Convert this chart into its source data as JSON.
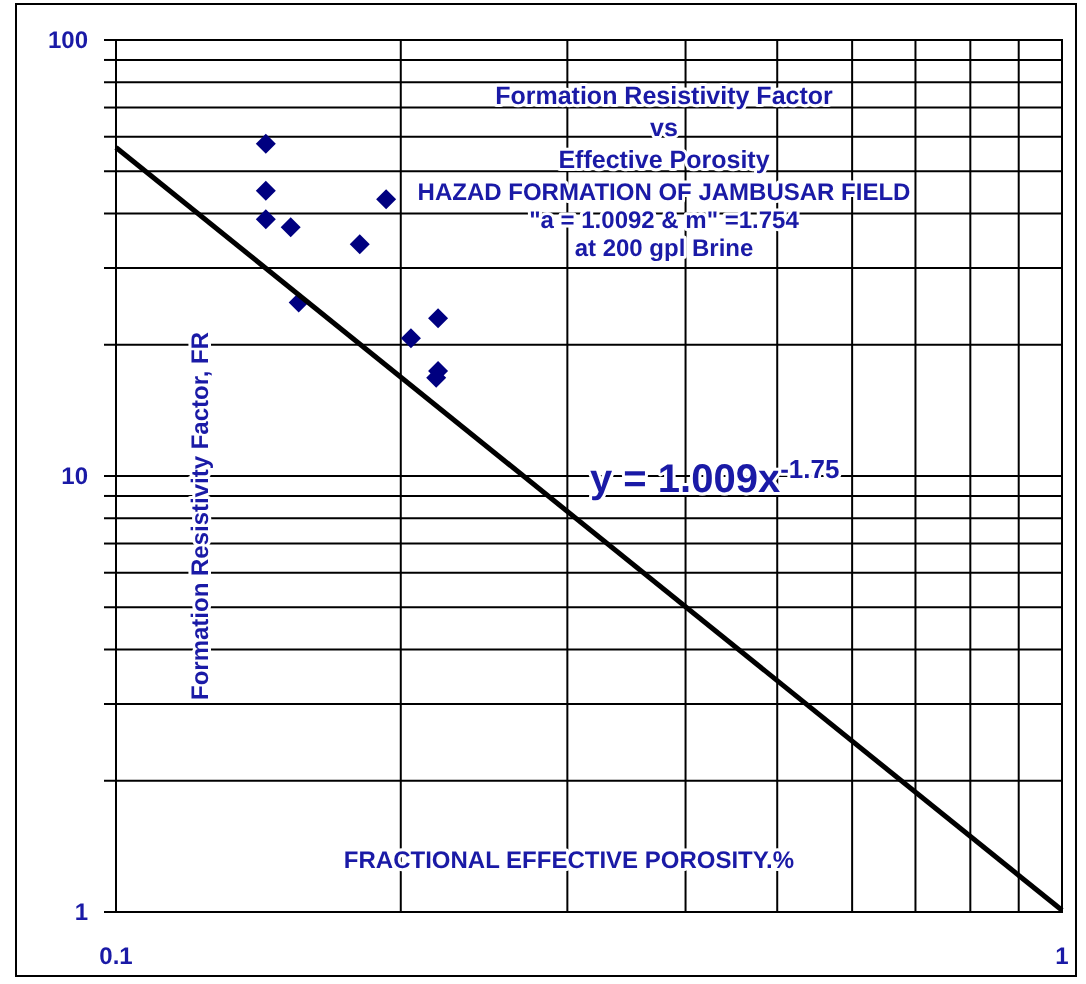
{
  "chart_data": {
    "type": "scatter",
    "title": "Formation Resistivity Factor\nvs\nEffective Porosity",
    "subtitle": "HAZAD FORMATION OF JAMBUSAR FIELD\n\"a = 1.0092 & m\" =1.754\nat 200 gpl Brine",
    "xlabel": "FRACTIONAL EFFECTIVE POROSITY.%",
    "ylabel": "Formation Resistivity Factor, FR",
    "log": "xy",
    "grid": true,
    "marker": "diamond",
    "xlim": [
      0.1,
      1
    ],
    "ylim": [
      1,
      100
    ],
    "xticks": [
      0.1,
      {
        "value": 0.2,
        "label": null
      },
      {
        "value": 0.3,
        "label": null
      },
      {
        "value": 0.4,
        "label": null
      },
      {
        "value": 0.5,
        "label": null
      },
      {
        "value": 0.6,
        "label": null
      },
      {
        "value": 0.7,
        "label": null
      },
      {
        "value": 0.8,
        "label": null
      },
      {
        "value": 0.9,
        "label": null
      },
      1
    ],
    "yticks": [
      1,
      {
        "value": 2,
        "label": null
      },
      {
        "value": 3,
        "label": null
      },
      {
        "value": 4,
        "label": null
      },
      {
        "value": 5,
        "label": null
      },
      {
        "value": 6,
        "label": null
      },
      {
        "value": 7,
        "label": null
      },
      {
        "value": 8,
        "label": null
      },
      {
        "value": 9,
        "label": null
      },
      10,
      {
        "value": 20,
        "label": null
      },
      {
        "value": 30,
        "label": null
      },
      {
        "value": 40,
        "label": null
      },
      {
        "value": 50,
        "label": null
      },
      {
        "value": 60,
        "label": null
      },
      {
        "value": 70,
        "label": null
      },
      {
        "value": 80,
        "label": null
      },
      {
        "value": 90,
        "label": null
      },
      100
    ],
    "series": [
      {
        "type": "scatter",
        "color": "#000080",
        "x": [
          0.144,
          0.144,
          0.144,
          0.153,
          0.181,
          0.193,
          0.156,
          0.219,
          0.205,
          0.219,
          0.218
        ],
        "values": [
          57.8,
          45.1,
          38.8,
          37.2,
          34.0,
          43.1,
          25.0,
          23.0,
          20.7,
          17.4,
          16.8
        ]
      },
      {
        "type": "line",
        "color": "#000000",
        "marker": "none",
        "x": [
          0.1,
          1
        ],
        "values": [
          56.7,
          1.009
        ]
      }
    ],
    "annotations": [
      "y = 1.009x$^{-1.75}$"
    ]
  }
}
